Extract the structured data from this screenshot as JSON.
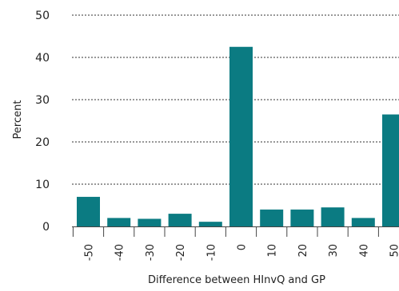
{
  "chart_data": {
    "type": "bar",
    "title": "",
    "xlabel": "Difference between HInvQ and GP",
    "ylabel": "Percent",
    "categories": [
      "-50",
      "-40",
      "-30",
      "-20",
      "-10",
      "0",
      "10",
      "20",
      "30",
      "40",
      "50"
    ],
    "values": [
      7.0,
      2.0,
      1.8,
      3.0,
      1.1,
      42.5,
      4.0,
      4.0,
      4.5,
      2.0,
      26.5
    ],
    "ylim": [
      0,
      50
    ],
    "yticks": [
      "0",
      "10",
      "20",
      "30",
      "40",
      "50"
    ],
    "grid": true,
    "legend": "none"
  },
  "colors": {
    "bar": "#0b7b82",
    "grid": "#333333",
    "axis": "#444444"
  }
}
